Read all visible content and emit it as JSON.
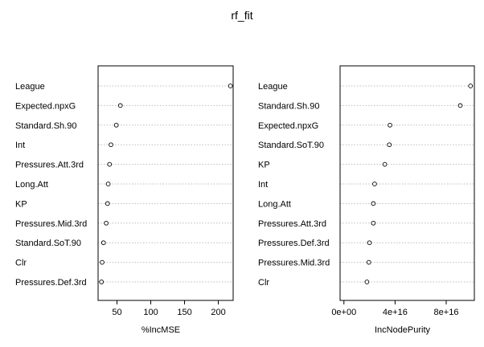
{
  "chart_data": {
    "type": "dotchart",
    "title": "rf_fit",
    "panels": [
      {
        "id": "mse",
        "xlabel": "%IncMSE",
        "xlim": [
          22,
          222
        ],
        "ticks": [
          50,
          100,
          150,
          200
        ],
        "tick_labels": [
          "50",
          "100",
          "150",
          "200"
        ],
        "categories": [
          "League",
          "Expected.npxG",
          "Standard.Sh.90",
          "Int",
          "Pressures.Att.3rd",
          "Long.Att",
          "KP",
          "Pressures.Mid.3rd",
          "Standard.SoT.90",
          "Clr",
          "Pressures.Def.3rd"
        ],
        "values": [
          218,
          55,
          49,
          41,
          39,
          37,
          36,
          34,
          30,
          28,
          27
        ]
      },
      {
        "id": "purity",
        "xlabel": "IncNodePurity",
        "xlim": [
          -3000000000000000.0,
          1.02e+17
        ],
        "ticks": [
          0,
          4e+16,
          8e+16
        ],
        "tick_labels": [
          "0e+00",
          "4e+16",
          "8e+16"
        ],
        "categories": [
          "League",
          "Standard.Sh.90",
          "Expected.npxG",
          "Standard.SoT.90",
          "KP",
          "Int",
          "Long.Att",
          "Pressures.Att.3rd",
          "Pressures.Def.3rd",
          "Pressures.Mid.3rd",
          "Clr"
        ],
        "values": [
          9.9e+16,
          9.1e+16,
          3.6e+16,
          3.55e+16,
          3.2e+16,
          2.4e+16,
          2.3e+16,
          2.3e+16,
          2e+16,
          1.95e+16,
          1.8e+16
        ]
      }
    ]
  }
}
